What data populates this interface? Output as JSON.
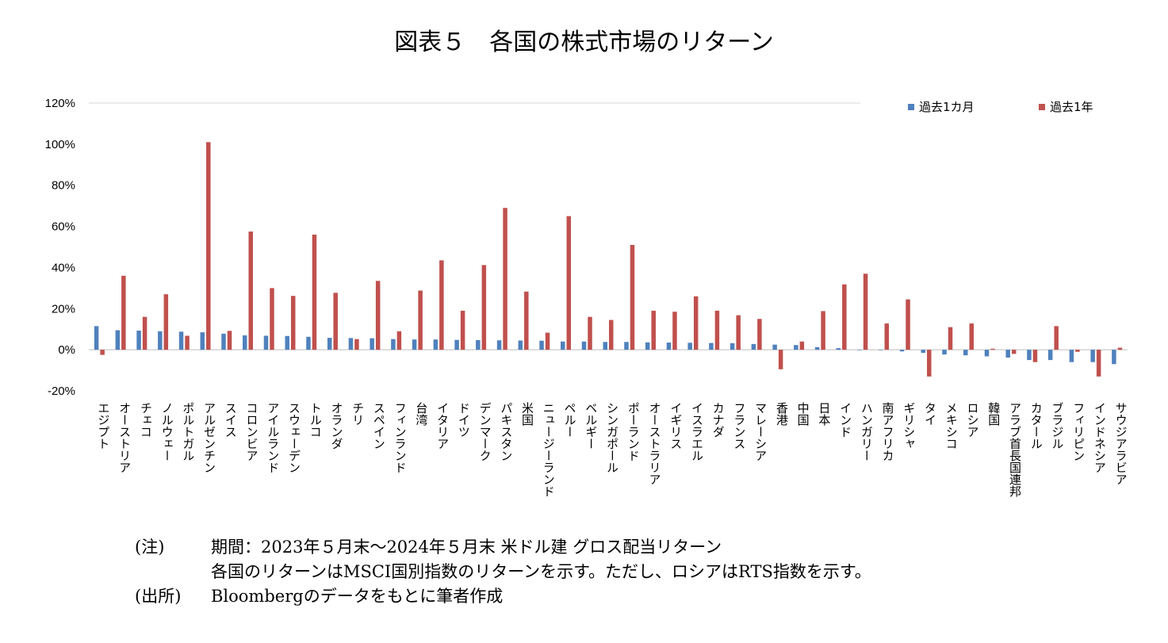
{
  "chart_data": {
    "type": "bar",
    "title": "図表５　各国の株式市場のリターン",
    "ylim": [
      -20,
      120
    ],
    "yticks": [
      -20,
      0,
      20,
      40,
      60,
      80,
      100,
      120
    ],
    "ytick_labels": [
      "-20%",
      "0%",
      "20%",
      "40%",
      "60%",
      "80%",
      "100%",
      "120%"
    ],
    "grid": false,
    "legend_position": "top-right",
    "categories": [
      "エジプト",
      "オーストリア",
      "チェコ",
      "ノルウェー",
      "ポルトガル",
      "アルゼンチン",
      "スイス",
      "コロンビア",
      "アイルランド",
      "スウェーデン",
      "トルコ",
      "オランダ",
      "チリ",
      "スペイン",
      "フィンランド",
      "台湾",
      "イタリア",
      "ドイツ",
      "デンマーク",
      "パキスタン",
      "米国",
      "ニュージーランド",
      "ペルー",
      "ベルギー",
      "シンガポール",
      "ポーランド",
      "オーストラリア",
      "イギリス",
      "イスラエル",
      "カナダ",
      "フランス",
      "マレーシア",
      "香港",
      "中国",
      "日本",
      "インド",
      "ハンガリー",
      "南アフリカ",
      "ギリシャ",
      "タイ",
      "メキシコ",
      "ロシア",
      "韓国",
      "アラブ首長国連邦",
      "カタール",
      "ブラジル",
      "フィリピン",
      "インドネシア",
      "サウジアラビア"
    ],
    "series": [
      {
        "name": "過去1カ月",
        "color": "#4F81BD",
        "values": [
          11.5,
          9.5,
          9.3,
          9.0,
          8.8,
          8.5,
          7.8,
          7.0,
          6.8,
          6.7,
          6.3,
          5.8,
          5.7,
          5.6,
          5.2,
          5.0,
          5.0,
          4.8,
          4.7,
          4.6,
          4.5,
          4.4,
          4.0,
          4.0,
          3.8,
          3.8,
          3.6,
          3.5,
          3.4,
          3.3,
          3.2,
          2.8,
          2.5,
          2.3,
          1.3,
          0.8,
          0.0,
          0.0,
          -0.8,
          -1.5,
          -2.3,
          -2.7,
          -3.2,
          -3.8,
          -5.0,
          -5.0,
          -6.0,
          -6.0,
          -7.0
        ]
      },
      {
        "name": "過去1年",
        "color": "#C0504D",
        "values": [
          -2.5,
          36.0,
          16.0,
          27.0,
          6.8,
          101.0,
          9.2,
          57.5,
          30.0,
          26.2,
          56.0,
          27.7,
          5.2,
          33.5,
          9.0,
          28.8,
          43.5,
          19.0,
          41.2,
          69.0,
          28.3,
          8.3,
          65.0,
          16.0,
          14.5,
          51.0,
          19.0,
          18.5,
          26.0,
          19.0,
          16.8,
          15.0,
          -9.5,
          4.0,
          18.8,
          31.8,
          37.0,
          12.8,
          24.5,
          -13.0,
          11.0,
          12.8,
          0.5,
          -2.0,
          -6.0,
          11.5,
          -1.0,
          -13.0,
          1.0
        ]
      }
    ]
  },
  "notes": {
    "note_label": "(注)",
    "note_line1": "期間：2023年５月末～2024年５月末 米ドル建 グロス配当リターン",
    "note_line2": "各国のリターンはMSCI国別指数のリターンを示す。ただし、ロシアはRTS指数を示す。",
    "source_label": "(出所)",
    "source_text": "Bloombergのデータをもとに筆者作成"
  }
}
